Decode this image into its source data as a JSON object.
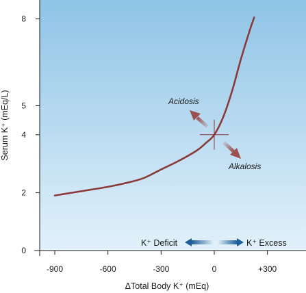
{
  "chart_data": {
    "type": "line",
    "title": "",
    "xlabel": "ΔTotal Body K⁺ (mEq)",
    "ylabel": "Serum K⁺ (mEq/L)",
    "xlim": [
      -970,
      350
    ],
    "ylim": [
      0,
      8.5
    ],
    "x_tick_labels": [
      {
        "value": -900,
        "label": "-900"
      },
      {
        "value": -600,
        "label": "-600"
      },
      {
        "value": -300,
        "label": "-300"
      },
      {
        "value": 0,
        "label": "0"
      },
      {
        "value": 300,
        "label": "+300"
      }
    ],
    "y_tick_labels": [
      {
        "value": 0,
        "label": "0"
      },
      {
        "value": 2,
        "label": "2"
      },
      {
        "value": 4,
        "label": "4"
      },
      {
        "value": 5,
        "label": "5"
      },
      {
        "value": 8,
        "label": "8"
      }
    ],
    "grid": false,
    "series": [
      {
        "color": "#8b3a3a",
        "x": [
          -900,
          -800,
          -700,
          -600,
          -500,
          -400,
          -300,
          -200,
          -100,
          -50,
          0,
          50,
          100,
          150,
          200,
          225
        ],
        "y": [
          1.9,
          2.0,
          2.1,
          2.2,
          2.33,
          2.5,
          2.8,
          3.1,
          3.45,
          3.7,
          4.0,
          4.6,
          5.5,
          6.6,
          7.6,
          8.05
        ]
      }
    ],
    "annotations": {
      "acidosis": {
        "label": "Acidosis",
        "color": "#9c5050"
      },
      "alkalosis": {
        "label": "Alkalosis",
        "color": "#9c5050"
      },
      "crosshair": {
        "x": 0,
        "y": 4,
        "color": "#8b3a3a"
      }
    },
    "legend": {
      "deficit_label": "K⁺ Deficit",
      "excess_label": "K⁺ Excess",
      "arrow_color": "#1f5f99"
    },
    "colors": {
      "background_top": "#8fc4e6",
      "background_bottom": "#e2f1fa",
      "axis": "#1a1a1a"
    }
  }
}
